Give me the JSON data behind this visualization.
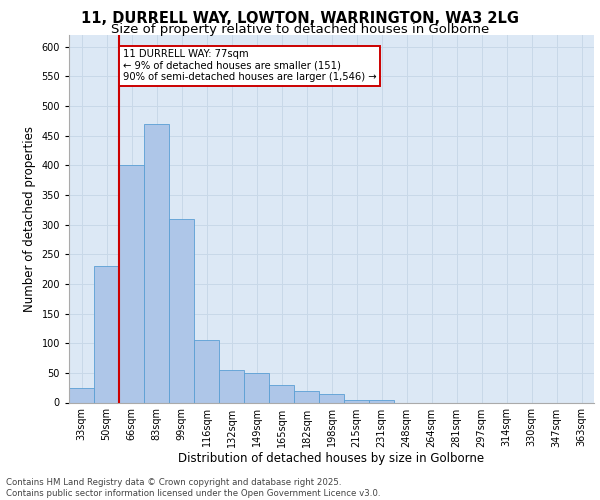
{
  "title_line1": "11, DURRELL WAY, LOWTON, WARRINGTON, WA3 2LG",
  "title_line2": "Size of property relative to detached houses in Golborne",
  "xlabel": "Distribution of detached houses by size in Golborne",
  "ylabel": "Number of detached properties",
  "categories": [
    "33sqm",
    "50sqm",
    "66sqm",
    "83sqm",
    "99sqm",
    "116sqm",
    "132sqm",
    "149sqm",
    "165sqm",
    "182sqm",
    "198sqm",
    "215sqm",
    "231sqm",
    "248sqm",
    "264sqm",
    "281sqm",
    "297sqm",
    "314sqm",
    "330sqm",
    "347sqm",
    "363sqm"
  ],
  "values": [
    25,
    230,
    400,
    470,
    310,
    105,
    55,
    50,
    30,
    20,
    15,
    5,
    5,
    0,
    0,
    0,
    0,
    0,
    0,
    0,
    0
  ],
  "bar_color": "#aec6e8",
  "bar_edge_color": "#5a9fd4",
  "vline_color": "#cc0000",
  "annotation_text": "11 DURRELL WAY: 77sqm\n← 9% of detached houses are smaller (151)\n90% of semi-detached houses are larger (1,546) →",
  "annotation_box_color": "#ffffff",
  "annotation_box_edge_color": "#cc0000",
  "ylim": [
    0,
    620
  ],
  "yticks": [
    0,
    50,
    100,
    150,
    200,
    250,
    300,
    350,
    400,
    450,
    500,
    550,
    600
  ],
  "grid_color": "#c8d8e8",
  "bg_color": "#dce8f5",
  "footer_text": "Contains HM Land Registry data © Crown copyright and database right 2025.\nContains public sector information licensed under the Open Government Licence v3.0.",
  "title_fontsize": 10.5,
  "subtitle_fontsize": 9.5,
  "tick_fontsize": 7,
  "label_fontsize": 8.5,
  "footer_fontsize": 6.2
}
